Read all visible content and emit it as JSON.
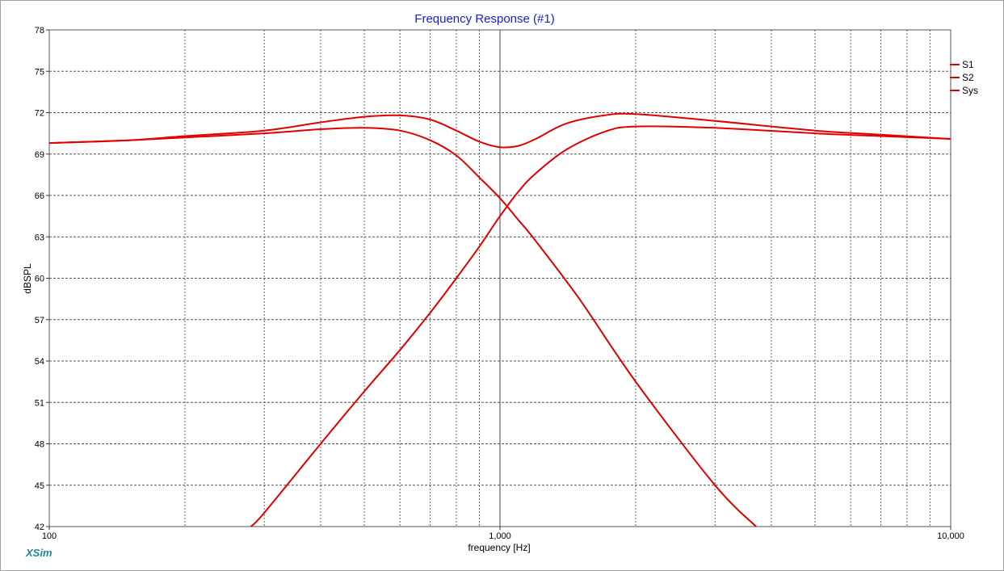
{
  "brand": "XSim",
  "chart_data": {
    "type": "line",
    "title": "Frequency Response (#1)",
    "xlabel": "frequency [Hz]",
    "ylabel": "dBSPL",
    "x_scale": "log",
    "xlim": [
      100,
      10000
    ],
    "ylim": [
      42,
      78
    ],
    "x_tick_values": [
      100,
      1000,
      10000
    ],
    "x_tick_labels": [
      "100",
      "1,000",
      "10,000"
    ],
    "y_ticks": [
      42,
      45,
      48,
      51,
      54,
      57,
      60,
      63,
      66,
      69,
      72,
      75,
      78
    ],
    "grid": true,
    "legend_position": "right",
    "colors": {
      "series": "#e00000",
      "title": "#1c1cd0",
      "brand": "#1a8a96"
    },
    "series": [
      {
        "name": "S1",
        "x": [
          100,
          150,
          200,
          300,
          400,
          500,
          600,
          700,
          800,
          900,
          1000,
          1100,
          1200,
          1500,
          2000,
          3000,
          3700
        ],
        "y": [
          69.8,
          70.0,
          70.2,
          70.5,
          70.8,
          70.9,
          70.7,
          70.0,
          68.9,
          67.3,
          65.8,
          64.2,
          62.7,
          58.5,
          52.5,
          45.0,
          42.0
        ]
      },
      {
        "name": "S2",
        "x": [
          280,
          300,
          400,
          500,
          600,
          700,
          800,
          900,
          1000,
          1100,
          1200,
          1400,
          1700,
          2000,
          3000,
          5000,
          7000,
          10000
        ],
        "y": [
          42.0,
          43.0,
          48.0,
          51.8,
          54.8,
          57.5,
          60.0,
          62.3,
          64.5,
          66.3,
          67.6,
          69.3,
          70.6,
          71.0,
          70.9,
          70.5,
          70.3,
          70.1
        ]
      },
      {
        "name": "Sys",
        "x": [
          100,
          150,
          200,
          300,
          400,
          500,
          600,
          700,
          800,
          900,
          1000,
          1100,
          1200,
          1400,
          1700,
          2000,
          3000,
          5000,
          7000,
          10000
        ],
        "y": [
          69.8,
          70.0,
          70.3,
          70.7,
          71.3,
          71.7,
          71.8,
          71.5,
          70.7,
          69.9,
          69.5,
          69.6,
          70.1,
          71.2,
          71.8,
          71.9,
          71.4,
          70.7,
          70.4,
          70.1
        ]
      }
    ]
  }
}
